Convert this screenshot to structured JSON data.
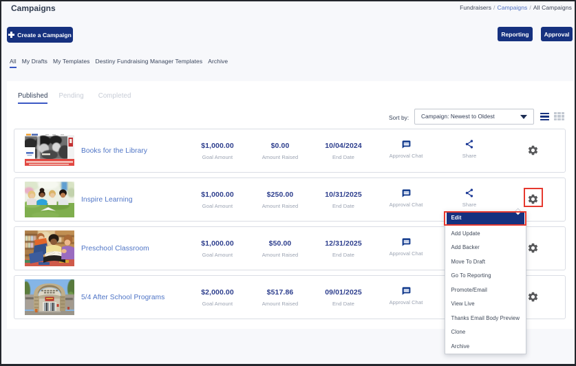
{
  "page": {
    "title": "Campaigns"
  },
  "breadcrumb": {
    "separator": "/",
    "items": [
      {
        "label": "Fundraisers",
        "link": false
      },
      {
        "label": "Campaigns",
        "link": true
      },
      {
        "label": "All Campaigns",
        "link": false
      }
    ]
  },
  "toolbar": {
    "create_button": "Create a Campaign",
    "reporting_button": "Reporting",
    "approval_button": "Approval"
  },
  "filter_nav": {
    "active_index": 0,
    "items": [
      {
        "label": "All"
      },
      {
        "label": "My Drafts"
      },
      {
        "label": "My Templates"
      },
      {
        "label": "Destiny Fundraising Manager Templates"
      },
      {
        "label": "Archive"
      }
    ]
  },
  "status_tabs": {
    "active_index": 0,
    "items": [
      {
        "label": "Published"
      },
      {
        "label": "Pending"
      },
      {
        "label": "Completed"
      }
    ]
  },
  "sort": {
    "label": "Sort by:",
    "value": "Campaign: Newest to Oldest"
  },
  "view_toggle": {
    "active": "list",
    "icons": [
      "list-view",
      "grid-view"
    ]
  },
  "list": {
    "column_labels": {
      "goal": "Goal Amount",
      "raised": "Amount Raised",
      "end_date": "End Date",
      "chat": "Approval Chat",
      "share": "Share"
    },
    "campaigns": [
      {
        "name": "Books for the Library",
        "goal": "$1,000.00",
        "raised": "$0.00",
        "end_date": "10/04/2024",
        "thumb": "books-for-the-library-thumbnail",
        "gear_annotated": false
      },
      {
        "name": "Inspire Learning",
        "goal": "$1,000.00",
        "raised": "$250.00",
        "end_date": "10/31/2025",
        "thumb": "inspire-learning-thumbnail",
        "gear_annotated": true
      },
      {
        "name": "Preschool Classroom",
        "goal": "$1,000.00",
        "raised": "$50.00",
        "end_date": "12/31/2025",
        "thumb": "preschool-classroom-thumbnail",
        "gear_annotated": false
      },
      {
        "name": "5/4 After School Programs",
        "goal": "$2,000.00",
        "raised": "$517.86",
        "end_date": "09/01/2025",
        "thumb": "after-school-programs-thumbnail",
        "gear_annotated": false
      }
    ]
  },
  "context_menu": {
    "active_index": 0,
    "annotated_index": 0,
    "items": [
      {
        "label": "Edit"
      },
      {
        "label": "Add Update"
      },
      {
        "label": "Add Backer"
      },
      {
        "label": "Move To Draft"
      },
      {
        "label": "Go To Reporting"
      },
      {
        "label": "Promote/Email"
      },
      {
        "label": "View Live"
      },
      {
        "label": "Thanks Email Body Preview"
      },
      {
        "label": "Clone"
      },
      {
        "label": "Archive"
      }
    ]
  },
  "colors": {
    "primary_blue": "#16317f",
    "link_blue": "#4d73c5",
    "value_navy": "#2d3e8d",
    "label_gray": "#9aa2b1",
    "annotation_red": "#e6382e",
    "tab_inactive": "#c7ccd6"
  }
}
